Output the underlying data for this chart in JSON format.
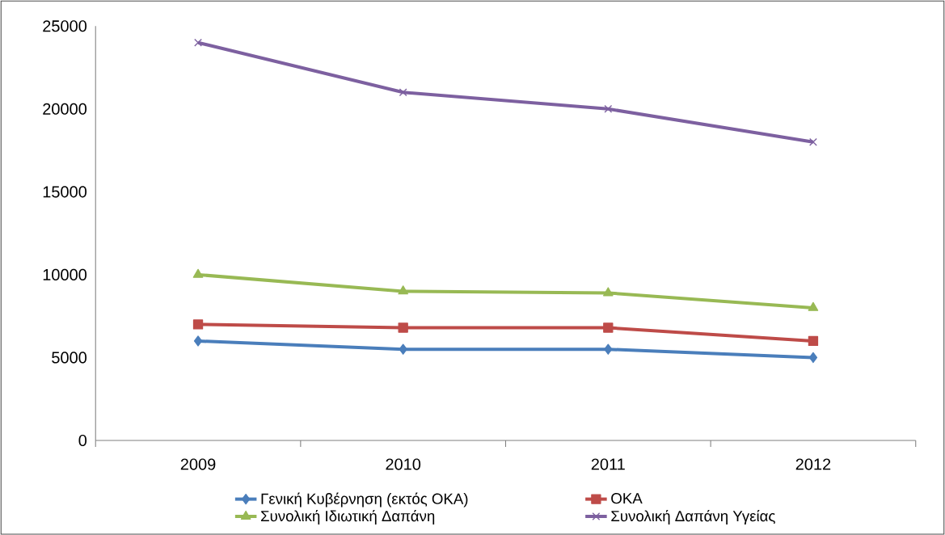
{
  "chart_data": {
    "type": "line",
    "categories": [
      "2009",
      "2010",
      "2011",
      "2012"
    ],
    "series": [
      {
        "name": "Γενική Κυβέρνηση (εκτός ΟΚΑ)",
        "color": "#4a7ebb",
        "marker": "diamond",
        "values": [
          6000,
          5500,
          5500,
          5000
        ]
      },
      {
        "name": "ΟΚΑ",
        "color": "#be4b48",
        "marker": "square",
        "values": [
          7000,
          6800,
          6800,
          6000
        ]
      },
      {
        "name": "Συνολική Ιδιωτική Δαπάνη",
        "color": "#98b954",
        "marker": "triangle",
        "values": [
          10000,
          9000,
          8900,
          8000
        ]
      },
      {
        "name": "Συνολική Δαπάνη Υγείας",
        "color": "#7d60a0",
        "marker": "cross",
        "values": [
          24000,
          21000,
          20000,
          18000
        ]
      }
    ],
    "ylim": [
      0,
      25000
    ],
    "yticks": [
      0,
      5000,
      10000,
      15000,
      20000,
      25000
    ],
    "legend": "bottom",
    "line_style": "solid"
  }
}
